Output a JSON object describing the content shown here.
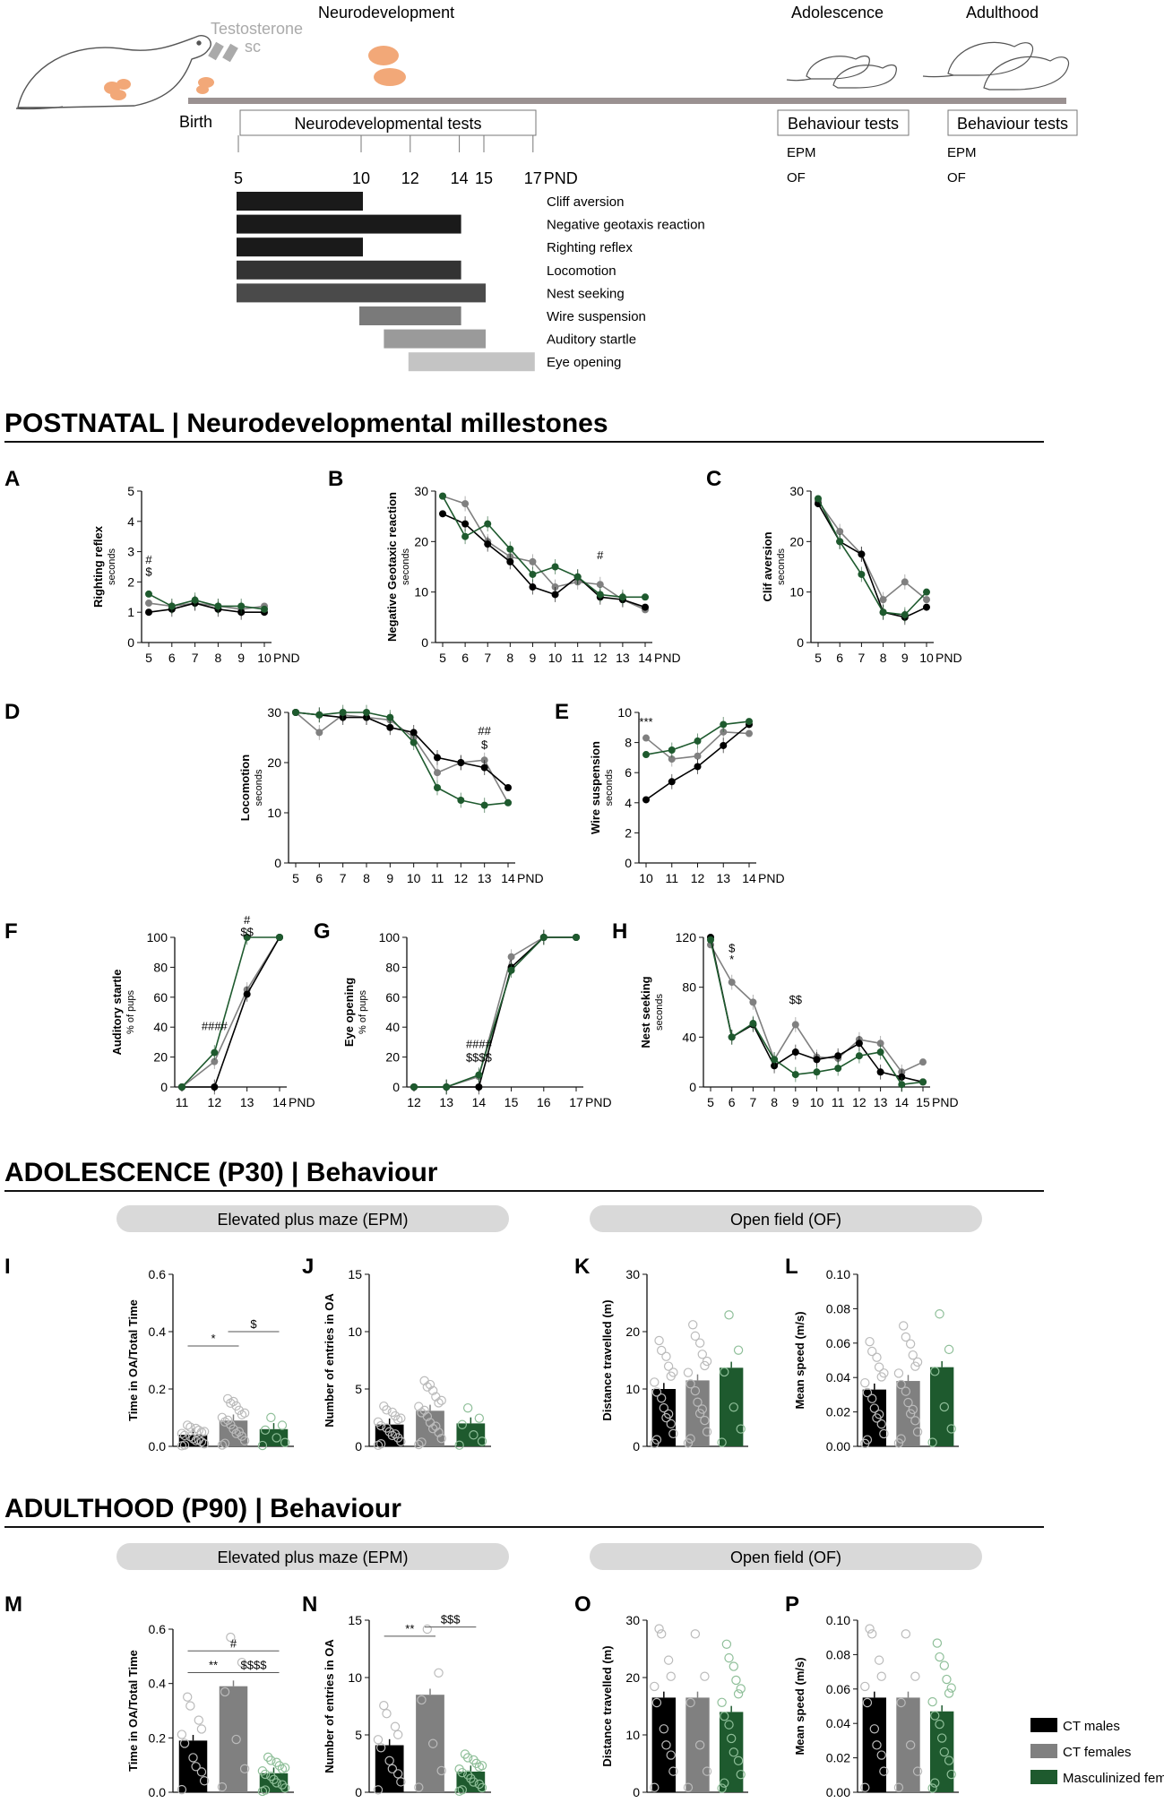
{
  "timeline": {
    "stages": [
      "Neurodevelopment",
      "Adolescence",
      "Adulthood"
    ],
    "treatment": "Testosterone",
    "treatment_route": "sc",
    "birth": "Birth",
    "neuro_box": "Neurodevelopmental tests",
    "behav_box_1": "Behaviour tests",
    "behav_box_2": "Behaviour tests",
    "behav_tests_1": [
      "EPM",
      "OF"
    ],
    "behav_tests_2": [
      "EPM",
      "OF"
    ],
    "day_ticks": [
      "5",
      "10",
      "12",
      "14",
      "15",
      "17"
    ],
    "day_unit": "PND",
    "gantt": [
      {
        "label": "Cliff aversion",
        "start": 5,
        "end": 10,
        "color": "#1a1a1a"
      },
      {
        "label": "Negative geotaxis reaction",
        "start": 5,
        "end": 14,
        "color": "#1a1a1a"
      },
      {
        "label": "Righting reflex",
        "start": 5,
        "end": 10,
        "color": "#1a1a1a"
      },
      {
        "label": "Locomotion",
        "start": 5,
        "end": 14,
        "color": "#333333"
      },
      {
        "label": "Nest seeking",
        "start": 5,
        "end": 15,
        "color": "#4a4a4a"
      },
      {
        "label": "Wire suspension",
        "start": 10,
        "end": 14,
        "color": "#7a7a7a"
      },
      {
        "label": "Auditory startle",
        "start": 11,
        "end": 15,
        "color": "#9a9a9a"
      },
      {
        "label": "Eye opening",
        "start": 12,
        "end": 17,
        "color": "#c4c4c4"
      }
    ]
  },
  "sections": {
    "postnatal": "POSTNATAL | Neurodevelopmental millestones",
    "adolescence": "ADOLESCENCE (P30) | Behaviour",
    "adulthood": "ADULTHOOD (P90) | Behaviour"
  },
  "pills": {
    "epm": "Elevated plus maze (EPM)",
    "of": "Open field (OF)"
  },
  "legend": [
    {
      "label": "CT males",
      "color": "#000000"
    },
    {
      "label": "CT females",
      "color": "#808080"
    },
    {
      "label": "Masculinized females",
      "color": "#1e5a2e"
    }
  ],
  "colors": {
    "males": "#000000",
    "females": "#808080",
    "masc": "#1e5a2e"
  },
  "chart_data": [
    {
      "id": "A",
      "type": "line",
      "ylabel": "Righting reflex",
      "ysub": "seconds",
      "ylim": [
        0,
        5
      ],
      "yticks": [
        0,
        1,
        2,
        3,
        4,
        5
      ],
      "x": [
        "5",
        "6",
        "7",
        "8",
        "9",
        "10"
      ],
      "xunit": "PND",
      "series": [
        {
          "values": [
            1.0,
            1.1,
            1.3,
            1.1,
            1.0,
            1.0
          ]
        },
        {
          "values": [
            1.3,
            1.2,
            1.3,
            1.2,
            1.1,
            1.2
          ]
        },
        {
          "values": [
            1.6,
            1.2,
            1.4,
            1.2,
            1.2,
            1.1
          ]
        }
      ],
      "annotations": [
        {
          "x": "5",
          "y": 2.2,
          "text": "$"
        },
        {
          "x": "5",
          "y": 2.6,
          "text": "#"
        }
      ]
    },
    {
      "id": "B",
      "type": "line",
      "ylabel": "Negative Geotaxic reaction",
      "ysub": "seconds",
      "ylim": [
        0,
        30
      ],
      "yticks": [
        0,
        10,
        20,
        30
      ],
      "x": [
        "5",
        "6",
        "7",
        "8",
        "9",
        "10",
        "11",
        "12",
        "13",
        "14"
      ],
      "xunit": "PND",
      "series": [
        {
          "values": [
            25.5,
            23.5,
            19.5,
            16,
            11,
            9.5,
            13,
            9,
            8.5,
            7
          ]
        },
        {
          "values": [
            29,
            27.5,
            20,
            17,
            16,
            11,
            12,
            11.5,
            8.5,
            6.5
          ]
        },
        {
          "values": [
            29,
            21,
            23.5,
            18.5,
            13.5,
            15,
            13,
            9.5,
            9,
            9
          ]
        }
      ],
      "annotations": [
        {
          "x": "12",
          "y": 16.5,
          "text": "#"
        }
      ]
    },
    {
      "id": "C",
      "type": "line",
      "ylabel": "Clif aversion",
      "ysub": "seconds",
      "ylim": [
        0,
        30
      ],
      "yticks": [
        0,
        10,
        20,
        30
      ],
      "x": [
        "5",
        "6",
        "7",
        "8",
        "9",
        "10"
      ],
      "xunit": "PND",
      "series": [
        {
          "values": [
            27.5,
            20,
            17.5,
            6,
            5,
            7
          ]
        },
        {
          "values": [
            28,
            22,
            17.5,
            8.5,
            12,
            8.5
          ]
        },
        {
          "values": [
            28.5,
            20,
            13.5,
            6,
            5.5,
            10
          ]
        }
      ],
      "annotations": []
    },
    {
      "id": "D",
      "type": "line",
      "ylabel": "Locomotion",
      "ysub": "seconds",
      "ylim": [
        0,
        30
      ],
      "yticks": [
        0,
        10,
        20,
        30
      ],
      "x": [
        "5",
        "6",
        "7",
        "8",
        "9",
        "10",
        "11",
        "12",
        "13",
        "14"
      ],
      "xunit": "PND",
      "series": [
        {
          "values": [
            30,
            29.5,
            29,
            29,
            27,
            26,
            21,
            20,
            19,
            15
          ]
        },
        {
          "values": [
            30,
            26,
            29.5,
            29,
            28.5,
            25,
            18,
            20,
            20.5,
            12
          ]
        },
        {
          "values": [
            30,
            29.5,
            30,
            30,
            29,
            24,
            15,
            12.5,
            11.5,
            12
          ]
        }
      ],
      "annotations": [
        {
          "x": "13",
          "y": 25.5,
          "text": "##"
        },
        {
          "x": "13",
          "y": 22.8,
          "text": "$"
        }
      ]
    },
    {
      "id": "E",
      "type": "line",
      "ylabel": "Wire suspension",
      "ysub": "seconds",
      "ylim": [
        0,
        10
      ],
      "yticks": [
        0,
        2,
        4,
        6,
        8,
        10
      ],
      "x": [
        "10",
        "11",
        "12",
        "13",
        "14"
      ],
      "xunit": "PND",
      "series": [
        {
          "values": [
            4.2,
            5.4,
            6.4,
            7.8,
            9.2
          ]
        },
        {
          "values": [
            8.3,
            6.9,
            7.1,
            8.7,
            8.6
          ]
        },
        {
          "values": [
            7.2,
            7.5,
            8.1,
            9.2,
            9.4
          ]
        }
      ],
      "annotations": [
        {
          "x": "10",
          "y": 9.1,
          "text": "***"
        }
      ]
    },
    {
      "id": "F",
      "type": "line",
      "ylabel": "Auditory startle",
      "ysub": "% of pups",
      "ylim": [
        0,
        100
      ],
      "yticks": [
        0,
        20,
        40,
        60,
        80,
        100
      ],
      "x": [
        "11",
        "12",
        "13",
        "14"
      ],
      "xunit": "PND",
      "series": [
        {
          "values": [
            0,
            0,
            62,
            100
          ]
        },
        {
          "values": [
            0,
            17,
            65,
            100
          ]
        },
        {
          "values": [
            0,
            23,
            100,
            100
          ]
        }
      ],
      "annotations": [
        {
          "x": "12",
          "y": 38,
          "text": "####"
        },
        {
          "x": "13",
          "y": 109,
          "text": "#"
        },
        {
          "x": "13",
          "y": 101,
          "text": "$$"
        }
      ]
    },
    {
      "id": "G",
      "type": "line",
      "ylabel": "Eye opening",
      "ysub": "% of pups",
      "ylim": [
        0,
        100
      ],
      "yticks": [
        0,
        20,
        40,
        60,
        80,
        100
      ],
      "x": [
        "12",
        "13",
        "14",
        "15",
        "16",
        "17"
      ],
      "xunit": "PND",
      "series": [
        {
          "values": [
            0,
            0,
            0,
            80,
            100,
            100
          ]
        },
        {
          "values": [
            0,
            0,
            7,
            87,
            100,
            100
          ]
        },
        {
          "values": [
            0,
            0,
            8,
            78,
            100,
            100
          ]
        }
      ],
      "annotations": [
        {
          "x": "14",
          "y": 26,
          "text": "####"
        },
        {
          "x": "14",
          "y": 17,
          "text": "$$$$"
        }
      ]
    },
    {
      "id": "H",
      "type": "line",
      "ylabel": "Nest seeking",
      "ysub": "seconds",
      "ylim": [
        0,
        120
      ],
      "yticks": [
        0,
        40,
        80,
        120
      ],
      "x": [
        "5",
        "6",
        "7",
        "8",
        "9",
        "10",
        "11",
        "12",
        "13",
        "14",
        "15"
      ],
      "xunit": "PND",
      "series": [
        {
          "values": [
            120,
            40,
            50,
            17,
            28,
            22,
            25,
            35,
            12,
            8,
            4
          ]
        },
        {
          "values": [
            114,
            84,
            68,
            22,
            50,
            24,
            23,
            38,
            35,
            12,
            20
          ]
        },
        {
          "values": [
            118,
            40,
            51,
            22,
            10,
            12,
            15,
            25,
            28,
            2,
            4
          ]
        }
      ],
      "annotations": [
        {
          "x": "6",
          "y": 108,
          "text": "$"
        },
        {
          "x": "6",
          "y": 99,
          "text": "*"
        },
        {
          "x": "9",
          "y": 67,
          "text": "$$"
        }
      ]
    },
    {
      "id": "I",
      "type": "bar",
      "ylabel": "Time in OA/Total Time",
      "ylim": [
        0,
        0.6
      ],
      "yticks": [
        "0.0",
        "0.2",
        "0.4",
        "0.6"
      ],
      "values": [
        0.04,
        0.09,
        0.06
      ],
      "n": [
        16,
        18,
        6
      ]
    },
    {
      "id": "J",
      "type": "bar",
      "ylabel": "Number of entries in OA",
      "ylim": [
        0,
        15
      ],
      "yticks": [
        "0",
        "5",
        "10",
        "15"
      ],
      "values": [
        1.9,
        3.1,
        2.0
      ],
      "n": [
        16,
        18,
        6
      ]
    },
    {
      "id": "K",
      "type": "bar",
      "ylabel": "Distance travelled (m)",
      "ylim": [
        0,
        30
      ],
      "yticks": [
        "0",
        "10",
        "20",
        "30"
      ],
      "values": [
        10,
        11.5,
        13.7
      ],
      "n": [
        16,
        16,
        6
      ]
    },
    {
      "id": "L",
      "type": "bar",
      "ylabel": "Mean speed (m/s)",
      "ylim": [
        0,
        0.1
      ],
      "yticks": [
        "0.00",
        "0.02",
        "0.04",
        "0.06",
        "0.08",
        "0.10"
      ],
      "values": [
        0.033,
        0.038,
        0.046
      ],
      "n": [
        16,
        16,
        6
      ]
    },
    {
      "id": "M",
      "type": "bar",
      "ylabel": "Time in OA/Total Time",
      "ylim": [
        0,
        0.6
      ],
      "yticks": [
        "0.0",
        "0.2",
        "0.4",
        "0.6"
      ],
      "values": [
        0.19,
        0.39,
        0.07
      ],
      "n": [
        11,
        6,
        15
      ]
    },
    {
      "id": "N",
      "type": "bar",
      "ylabel": "Number of entries in OA",
      "ylim": [
        0,
        15
      ],
      "yticks": [
        "0",
        "5",
        "10",
        "15"
      ],
      "values": [
        4.1,
        8.5,
        1.8
      ],
      "n": [
        11,
        6,
        15
      ]
    },
    {
      "id": "O",
      "type": "bar",
      "ylabel": "Distance travelled (m)",
      "ylim": [
        0,
        30
      ],
      "yticks": [
        "0",
        "10",
        "20",
        "30"
      ],
      "values": [
        16.5,
        16.5,
        14
      ],
      "n": [
        11,
        6,
        15
      ]
    },
    {
      "id": "P",
      "type": "bar",
      "ylabel": "Mean speed (m/s)",
      "ylim": [
        0,
        0.1
      ],
      "yticks": [
        "0.00",
        "0.02",
        "0.04",
        "0.06",
        "0.08",
        "0.10"
      ],
      "values": [
        0.055,
        0.055,
        0.047
      ],
      "n": [
        11,
        6,
        15
      ]
    }
  ],
  "bar_sigs": {
    "I": [
      {
        "a": 0,
        "b": 1,
        "text": "*",
        "y": 0.35
      },
      {
        "a": 1,
        "b": 2,
        "text": "$",
        "y": 0.4
      }
    ],
    "M": [
      {
        "a": 0,
        "b": 2,
        "text": "#",
        "y": 0.52
      },
      {
        "a": 0,
        "b": 1,
        "text": "**",
        "y": 0.44
      },
      {
        "a": 1,
        "b": 2,
        "text": "$$$$",
        "y": 0.44
      }
    ],
    "N": [
      {
        "a": 0,
        "b": 1,
        "text": "**",
        "y": 13.6
      },
      {
        "a": 1,
        "b": 2,
        "text": "$$$",
        "y": 14.4
      }
    ]
  }
}
